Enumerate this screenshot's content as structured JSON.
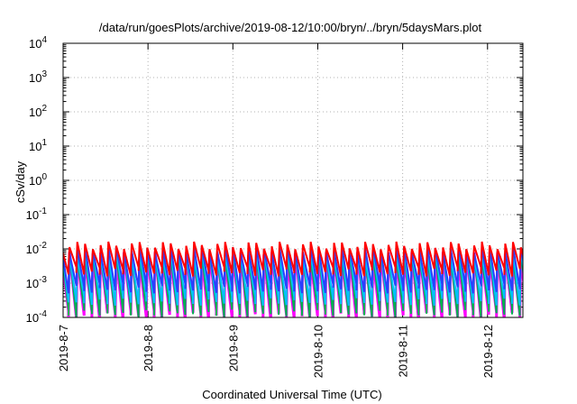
{
  "chart_data": {
    "type": "line",
    "title": "/data/run/goesPlots/archive/2019-08-12/10:00/bryn/../bryn/5daysMars.plot",
    "xlabel": "Coordinated Universal Time (UTC)",
    "ylabel": "cSv/day",
    "xscale": "time",
    "yscale": "log",
    "xlim": [
      "2019-08-07T00:00",
      "2019-08-12T10:00"
    ],
    "ylim": [
      0.0001,
      10000
    ],
    "grid": true,
    "legend": "none",
    "x_ticks": [
      "2019-8-7",
      "2019-8-8",
      "2019-8-9",
      "2019-8-10",
      "2019-8-11",
      "2019-8-12"
    ],
    "y_ticks": [
      {
        "base": "10",
        "exp": "-4"
      },
      {
        "base": "10",
        "exp": "-3"
      },
      {
        "base": "10",
        "exp": "-2"
      },
      {
        "base": "10",
        "exp": "-1"
      },
      {
        "base": "10",
        "exp": "0"
      },
      {
        "base": "10",
        "exp": "1"
      },
      {
        "base": "10",
        "exp": "2"
      },
      {
        "base": "10",
        "exp": "3"
      },
      {
        "base": "10",
        "exp": "4"
      }
    ],
    "pattern": {
      "description": "sawtooth: sharp rise then linear decay, repeating",
      "period_hours": 2.2,
      "series": [
        {
          "color": "#ff00ff",
          "peak": 0.0065,
          "trough": 0.00013
        },
        {
          "color": "#00b050",
          "peak": 0.0072,
          "trough": 0.00016
        },
        {
          "color": "#00c0ff",
          "peak": 0.008,
          "trough": 0.00035
        },
        {
          "color": "#2a3fff",
          "peak": 0.01,
          "trough": 0.0008
        },
        {
          "color": "#ff0000",
          "peak": 0.013,
          "trough": 0.0025
        }
      ]
    }
  }
}
